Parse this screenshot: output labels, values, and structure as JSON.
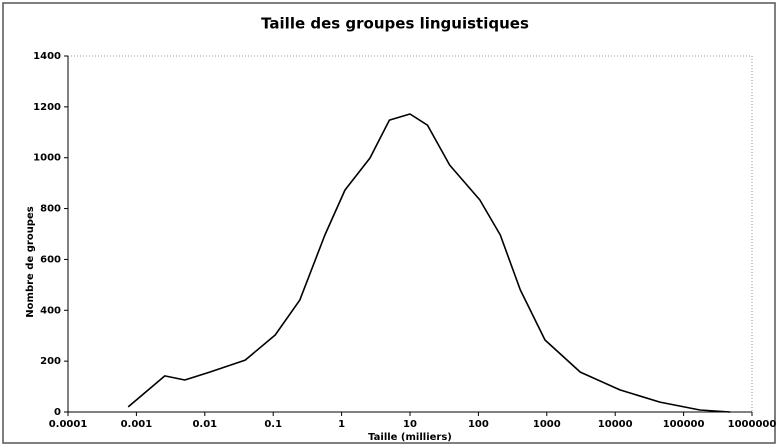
{
  "chart_data": {
    "type": "line",
    "title": "Taille des groupes linguistiques",
    "xlabel": "Taille (milliers)",
    "ylabel": "Nombre de groupes",
    "xscale": "log",
    "x": [
      0.00076,
      0.0026,
      0.0051,
      0.0118,
      0.039,
      0.107,
      0.245,
      0.57,
      1.12,
      2.6,
      5,
      10,
      18,
      38,
      105,
      209,
      410,
      940,
      3090,
      11700,
      45000,
      173000,
      480000
    ],
    "series": [
      {
        "name": "Nombre de groupes",
        "color": "#000000",
        "values": [
          20,
          142,
          126,
          157,
          204,
          303,
          440,
          696,
          873,
          999,
          1148,
          1172,
          1128,
          971,
          834,
          696,
          480,
          283,
          157,
          87,
          39,
          8,
          0
        ]
      }
    ],
    "xlim": [
      0.0001,
      1000000
    ],
    "xticks": [
      0.0001,
      0.001,
      0.01,
      0.1,
      1,
      10,
      100,
      1000,
      10000,
      100000,
      1000000
    ],
    "ylim": [
      0,
      1400
    ],
    "yticks": [
      0,
      200,
      400,
      600,
      800,
      1000,
      1200,
      1400
    ]
  }
}
